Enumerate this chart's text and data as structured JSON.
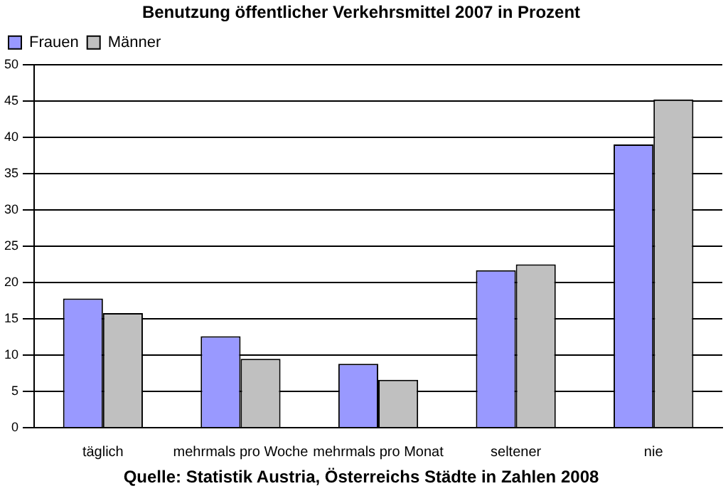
{
  "chart_data": {
    "type": "bar",
    "title": "Benutzung öffentlicher Verkehrsmittel 2007 in Prozent",
    "categories": [
      "täglich",
      "mehrmals pro Woche",
      "mehrmals pro Monat",
      "seltener",
      "nie"
    ],
    "series": [
      {
        "name": "Frauen",
        "color": "#9999ff",
        "values": [
          17.8,
          12.6,
          8.8,
          21.7,
          39.0
        ]
      },
      {
        "name": "Männer",
        "color": "#c0c0c0",
        "values": [
          15.8,
          9.5,
          6.6,
          22.5,
          45.2
        ]
      }
    ],
    "ylim": [
      0,
      50
    ],
    "yticks": [
      0,
      5,
      10,
      15,
      20,
      25,
      30,
      35,
      40,
      45,
      50
    ],
    "grid": "y",
    "legend": "top left",
    "annotations": [
      "Quelle: Statistik Austria, Österreichs Städte in Zahlen 2008"
    ]
  }
}
